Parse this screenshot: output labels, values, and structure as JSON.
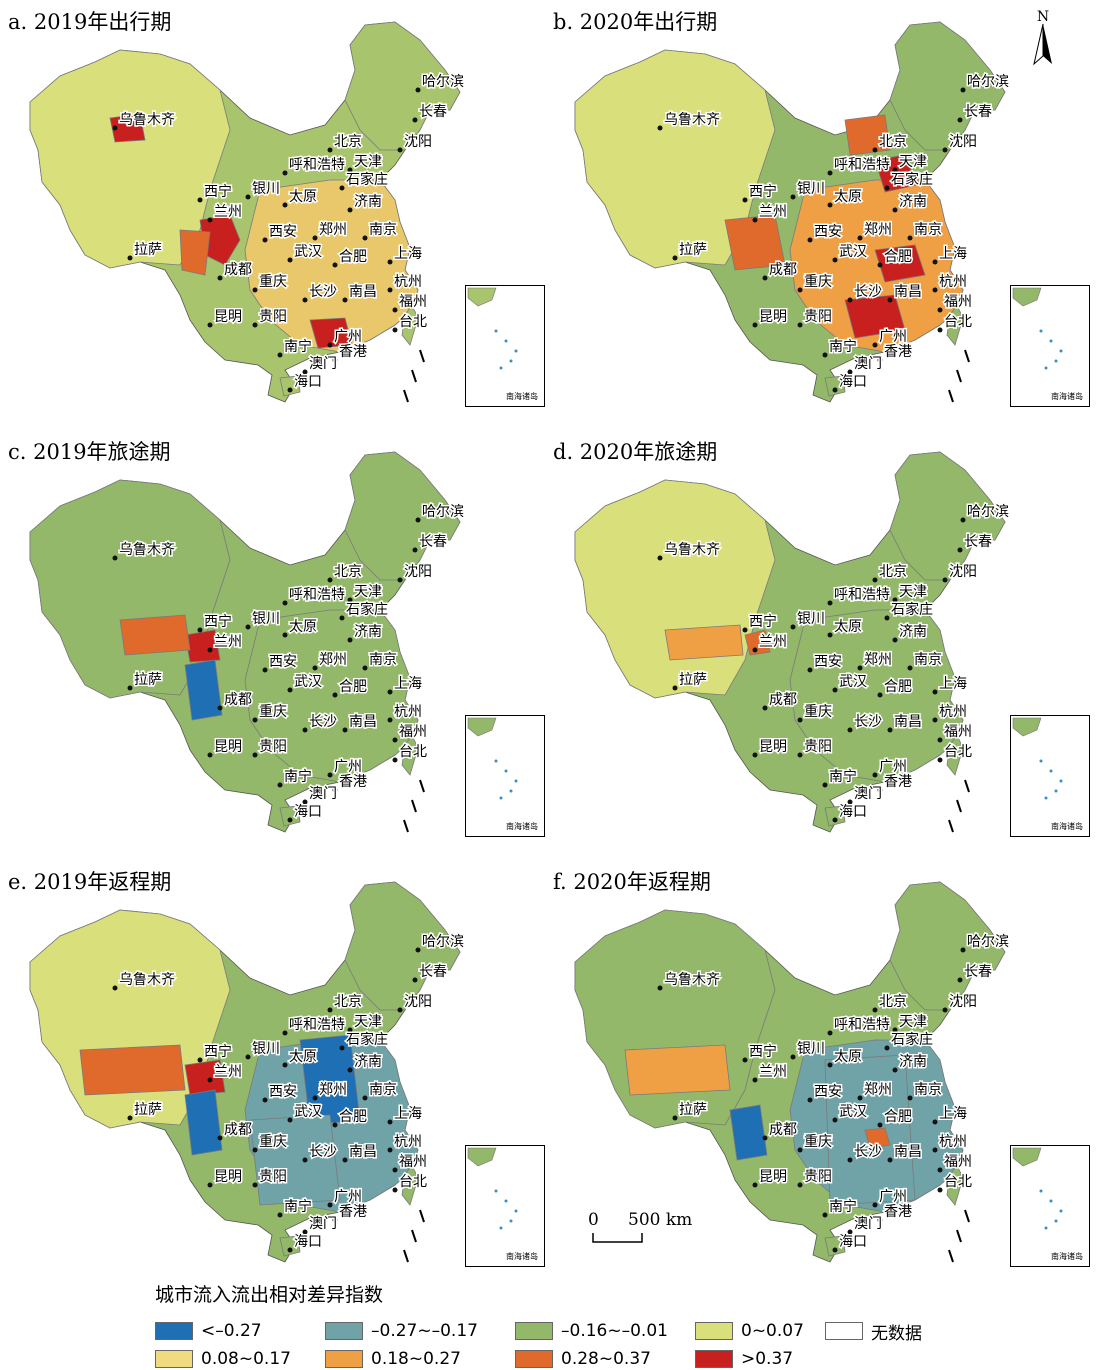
{
  "panels": [
    {
      "id": "a",
      "title": "a. 2019年出行期"
    },
    {
      "id": "b",
      "title": "b. 2020年出行期"
    },
    {
      "id": "c",
      "title": "c. 2019年旅途期"
    },
    {
      "id": "d",
      "title": "d. 2020年旅途期"
    },
    {
      "id": "e",
      "title": "e. 2019年返程期"
    },
    {
      "id": "f",
      "title": "f. 2020年返程期"
    }
  ],
  "cities": [
    {
      "name": "哈尔滨"
    },
    {
      "name": "长春"
    },
    {
      "name": "沈阳"
    },
    {
      "name": "北京"
    },
    {
      "name": "天津"
    },
    {
      "name": "呼和浩特"
    },
    {
      "name": "石家庄"
    },
    {
      "name": "乌鲁木齐"
    },
    {
      "name": "西宁"
    },
    {
      "name": "银川"
    },
    {
      "name": "太原"
    },
    {
      "name": "济南"
    },
    {
      "name": "兰州"
    },
    {
      "name": "西安"
    },
    {
      "name": "郑州"
    },
    {
      "name": "南京"
    },
    {
      "name": "拉萨"
    },
    {
      "name": "成都"
    },
    {
      "name": "武汉"
    },
    {
      "name": "合肥"
    },
    {
      "name": "上海"
    },
    {
      "name": "杭州"
    },
    {
      "name": "重庆"
    },
    {
      "name": "长沙"
    },
    {
      "name": "南昌"
    },
    {
      "name": "福州"
    },
    {
      "name": "昆明"
    },
    {
      "name": "贵阳"
    },
    {
      "name": "台北"
    },
    {
      "name": "广州"
    },
    {
      "name": "南宁"
    },
    {
      "name": "香港"
    },
    {
      "name": "澳门"
    },
    {
      "name": "海口"
    }
  ],
  "inset": {
    "label": "南海诸岛"
  },
  "north_arrow": "N",
  "scale_bar": {
    "zero": "0",
    "length_label": "500 km"
  },
  "legend": {
    "title": "城市流入流出相对差异指数",
    "items": [
      {
        "label": "<–0.27",
        "color": "#1f6fb4"
      },
      {
        "label": "–0.27~–0.17",
        "color": "#6fa3a8"
      },
      {
        "label": "–0.16~–0.01",
        "color": "#93b86a"
      },
      {
        "label": "0~0.07",
        "color": "#d9df7a"
      },
      {
        "label": "无数据",
        "color": "#ffffff"
      },
      {
        "label": "0.08~0.17",
        "color": "#f0db80"
      },
      {
        "label": "0.18~0.27",
        "color": "#f0a044"
      },
      {
        "label": "0.28~0.37",
        "color": "#e0692c"
      },
      {
        "label": ">0.37",
        "color": "#c8201e"
      }
    ]
  },
  "panel_colors": {
    "a": {
      "base": "#a8c46c",
      "west": "#d9df7a",
      "east": "#e8c86a",
      "hot": "#c8201e",
      "warm": "#e0692c"
    },
    "b": {
      "base": "#93b86a",
      "west": "#d9df7a",
      "east": "#f0a044",
      "hot": "#c8201e",
      "warm": "#e0692c"
    },
    "c": {
      "base": "#93b86a",
      "west": "#93b86a",
      "east": "#93b86a",
      "hot": "#c8201e",
      "warm": "#e0692c"
    },
    "d": {
      "base": "#93b86a",
      "west": "#d9df7a",
      "east": "#93b86a",
      "hot": "#e0692c",
      "warm": "#f0a044"
    },
    "e": {
      "base": "#93b86a",
      "west": "#d9df7a",
      "east": "#6fa3a8",
      "hot": "#c8201e",
      "warm": "#e0692c"
    },
    "f": {
      "base": "#93b86a",
      "west": "#93b86a",
      "east": "#6fa3a8",
      "hot": "#e0692c",
      "warm": "#f0a044"
    }
  }
}
